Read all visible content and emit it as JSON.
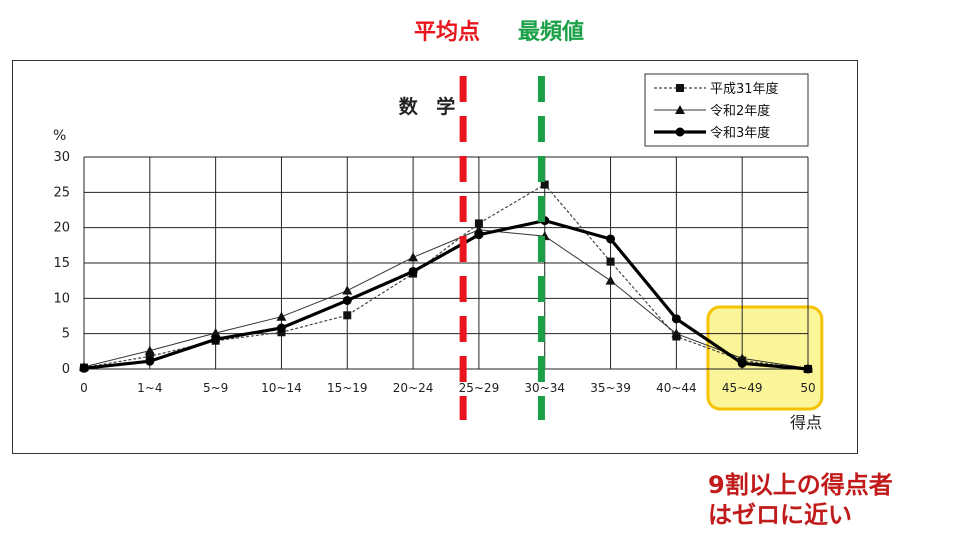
{
  "header": {
    "mean_label": "平均点",
    "mode_label": "最頻値"
  },
  "annotation": {
    "line1": "9割以上の得点者",
    "line2": "はゼロに近い"
  },
  "chart_data": {
    "type": "line",
    "title": "数 学",
    "ylabel": "%",
    "xlabel": "得点",
    "ylim": [
      0,
      30
    ],
    "yticks": [
      0,
      5,
      10,
      15,
      20,
      25,
      30
    ],
    "categories": [
      "0",
      "1~4",
      "5~9",
      "10~14",
      "15~19",
      "20~24",
      "25~29",
      "30~34",
      "35~39",
      "40~44",
      "45~49",
      "50"
    ],
    "grid": true,
    "legend_position": "top-right",
    "series": [
      {
        "name": "平成31年度",
        "marker": "square",
        "style": "dotted",
        "values": [
          0.2,
          1.8,
          4.0,
          5.2,
          7.6,
          13.5,
          20.6,
          26.1,
          15.2,
          4.6,
          1.2,
          0.0
        ]
      },
      {
        "name": "令和2年度",
        "marker": "triangle",
        "style": "thin",
        "values": [
          0.3,
          2.6,
          5.1,
          7.4,
          11.1,
          15.8,
          19.7,
          18.8,
          12.5,
          5.0,
          1.5,
          0.1
        ]
      },
      {
        "name": "令和3年度",
        "marker": "circle",
        "style": "bold",
        "values": [
          0.1,
          1.1,
          4.2,
          5.8,
          9.7,
          13.8,
          19.0,
          21.0,
          18.4,
          7.1,
          0.8,
          0.0
        ]
      }
    ],
    "reference_lines": [
      {
        "label": "平均点",
        "x_between": [
          5,
          6
        ],
        "offset": 0.76,
        "color": "#e8151c"
      },
      {
        "label": "最頻値",
        "x_between": [
          6,
          7
        ],
        "offset": 0.95,
        "color": "#1aa148"
      }
    ],
    "highlight_range": {
      "from": 10,
      "to": 11,
      "color": "#f5c200"
    }
  }
}
